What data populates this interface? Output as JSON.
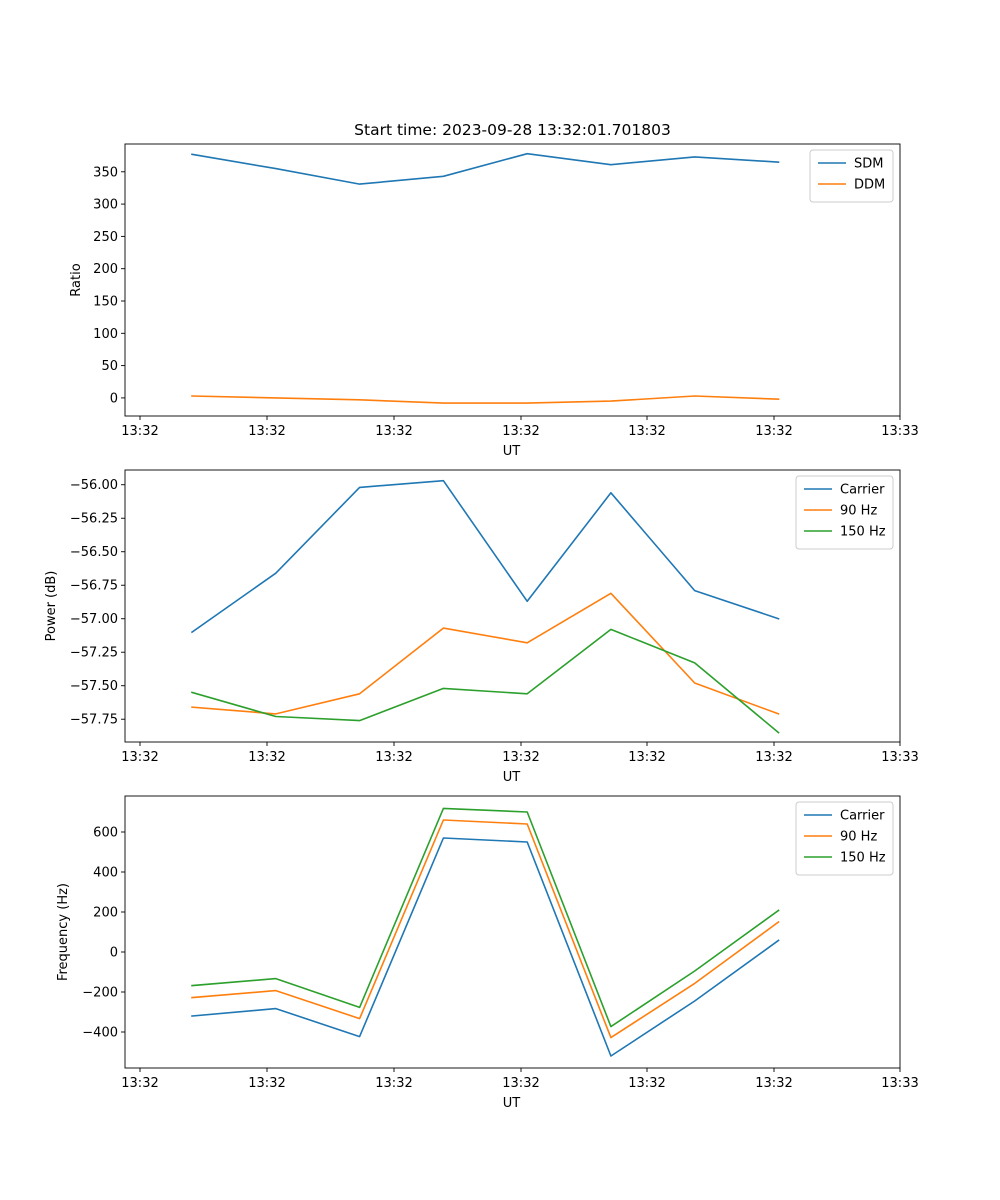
{
  "colors": {
    "blue": "#1f77b4",
    "orange": "#ff7f0e",
    "green": "#2ca02c"
  },
  "chart_data": [
    {
      "type": "line",
      "title": "Start time: 2023-09-28 13:32:01.701803",
      "xlabel": "UT",
      "ylabel": "Ratio",
      "x_ticks": [
        "13:32",
        "13:32",
        "13:32",
        "13:32",
        "13:32",
        "13:32",
        "13:32"
      ],
      "x_end_tick": "13:33",
      "x": [
        1,
        2,
        3,
        4,
        5,
        6,
        7,
        8
      ],
      "xlim": [
        0.2,
        9.45
      ],
      "ylim": [
        -28,
        393
      ],
      "y_ticks": [
        0,
        50,
        100,
        150,
        200,
        250,
        300,
        350
      ],
      "legend": "top-right",
      "series": [
        {
          "name": "SDM",
          "color": "#1f77b4",
          "values": [
            377,
            355,
            331,
            343,
            378,
            361,
            373,
            365
          ]
        },
        {
          "name": "DDM",
          "color": "#ff7f0e",
          "values": [
            3,
            0,
            -3,
            -8,
            -8,
            -5,
            3,
            -2
          ]
        }
      ]
    },
    {
      "type": "line",
      "title": "",
      "xlabel": "UT",
      "ylabel": "Power (dB)",
      "x_ticks": [
        "13:32",
        "13:32",
        "13:32",
        "13:32",
        "13:32",
        "13:32",
        "13:32"
      ],
      "x_end_tick": "13:33",
      "x": [
        1,
        2,
        3,
        4,
        5,
        6,
        7,
        8
      ],
      "xlim": [
        0.2,
        9.45
      ],
      "ylim": [
        -57.92,
        -55.89
      ],
      "y_ticks": [
        -57.75,
        -57.5,
        -57.25,
        -57.0,
        -56.75,
        -56.5,
        -56.25,
        -56.0
      ],
      "y_tick_labels": [
        "−57.75",
        "−57.50",
        "−57.25",
        "−57.00",
        "−56.75",
        "−56.50",
        "−56.25",
        "−56.00"
      ],
      "legend": "top-right",
      "series": [
        {
          "name": "Carrier",
          "color": "#1f77b4",
          "values": [
            -57.1,
            -56.66,
            -56.02,
            -55.97,
            -56.87,
            -56.06,
            -56.79,
            -57.0
          ]
        },
        {
          "name": "90 Hz",
          "color": "#ff7f0e",
          "values": [
            -57.66,
            -57.71,
            -57.56,
            -57.07,
            -57.18,
            -56.81,
            -57.48,
            -57.71
          ]
        },
        {
          "name": "150 Hz",
          "color": "#2ca02c",
          "values": [
            -57.55,
            -57.73,
            -57.76,
            -57.52,
            -57.56,
            -57.08,
            -57.33,
            -57.85
          ]
        }
      ]
    },
    {
      "type": "line",
      "title": "",
      "xlabel": "UT",
      "ylabel": "Frequency (Hz)",
      "x_ticks": [
        "13:32",
        "13:32",
        "13:32",
        "13:32",
        "13:32",
        "13:32",
        "13:32"
      ],
      "x_end_tick": "13:33",
      "x": [
        1,
        2,
        3,
        4,
        5,
        6,
        7,
        8
      ],
      "xlim": [
        0.2,
        9.45
      ],
      "ylim": [
        -580,
        780
      ],
      "y_ticks": [
        -400,
        -200,
        0,
        200,
        400,
        600
      ],
      "y_tick_labels": [
        "−400",
        "−200",
        "0",
        "200",
        "400",
        "600"
      ],
      "legend": "top-right",
      "series": [
        {
          "name": "Carrier",
          "color": "#1f77b4",
          "values": [
            -320,
            -283,
            -423,
            570,
            550,
            -520,
            -245,
            58
          ]
        },
        {
          "name": "90 Hz",
          "color": "#ff7f0e",
          "values": [
            -228,
            -193,
            -333,
            660,
            640,
            -428,
            -157,
            150
          ]
        },
        {
          "name": "150 Hz",
          "color": "#2ca02c",
          "values": [
            -168,
            -133,
            -277,
            718,
            700,
            -373,
            -95,
            208
          ]
        }
      ]
    }
  ]
}
